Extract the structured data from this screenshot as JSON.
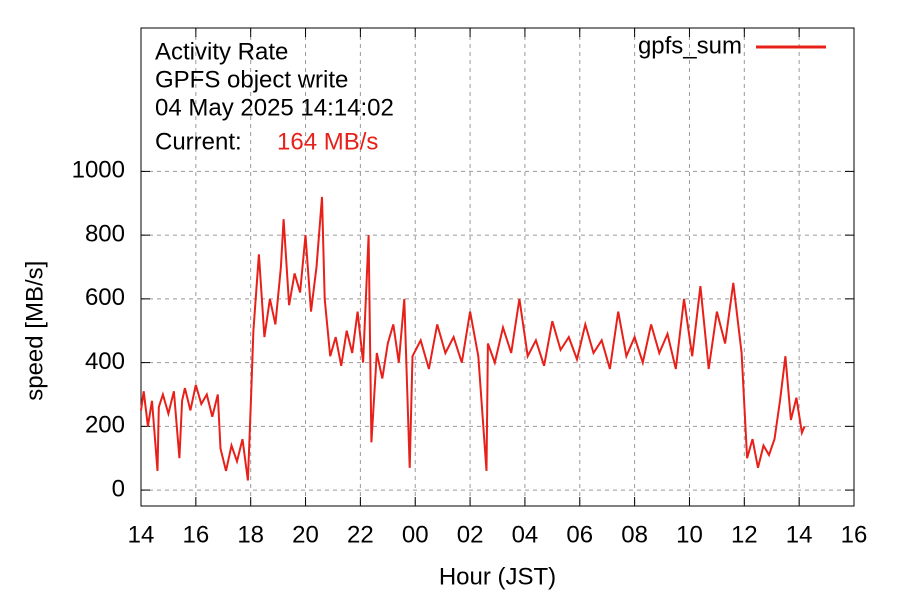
{
  "chart_data": {
    "type": "line",
    "title": "Activity Rate",
    "subtitle": "GPFS object write",
    "timestamp": "04 May 2025 14:14:02",
    "current_label": "Current:",
    "current_value": "164 MB/s",
    "xlabel": "Hour (JST)",
    "ylabel": "speed [MB/s]",
    "x": [
      14.0,
      14.1,
      14.25,
      14.4,
      14.6,
      14.65,
      14.8,
      15.0,
      15.2,
      15.4,
      15.5,
      15.6,
      15.8,
      16.0,
      16.2,
      16.4,
      16.6,
      16.8,
      16.9,
      17.1,
      17.3,
      17.5,
      17.7,
      17.9,
      18.0,
      18.1,
      18.3,
      18.5,
      18.7,
      18.9,
      19.1,
      19.2,
      19.4,
      19.6,
      19.8,
      20.0,
      20.2,
      20.4,
      20.6,
      20.7,
      20.9,
      21.1,
      21.3,
      21.5,
      21.7,
      21.9,
      22.1,
      22.3,
      22.4,
      22.6,
      22.8,
      23.0,
      23.2,
      23.4,
      23.6,
      23.8,
      23.9,
      24.2,
      24.5,
      24.8,
      25.1,
      25.4,
      25.7,
      26.0,
      26.3,
      26.6,
      26.65,
      26.9,
      27.2,
      27.5,
      27.8,
      28.1,
      28.4,
      28.7,
      29.0,
      29.3,
      29.6,
      29.9,
      30.2,
      30.5,
      30.8,
      31.1,
      31.4,
      31.7,
      32.0,
      32.3,
      32.6,
      32.9,
      33.2,
      33.5,
      33.8,
      34.1,
      34.4,
      34.7,
      35.0,
      35.3,
      35.6,
      35.9,
      36.1,
      36.3,
      36.5,
      36.7,
      36.9,
      37.1,
      37.3,
      37.5,
      37.7,
      37.9,
      38.1,
      38.2
    ],
    "series": [
      {
        "name": "gpfs_sum",
        "color": "#e8201a",
        "values": [
          250,
          310,
          200,
          280,
          60,
          260,
          300,
          240,
          310,
          100,
          280,
          320,
          250,
          330,
          270,
          300,
          230,
          300,
          130,
          60,
          140,
          90,
          160,
          30,
          260,
          500,
          740,
          480,
          600,
          520,
          700,
          850,
          580,
          680,
          620,
          800,
          560,
          700,
          920,
          600,
          420,
          480,
          390,
          500,
          430,
          560,
          400,
          800,
          150,
          430,
          350,
          460,
          520,
          400,
          600,
          70,
          420,
          470,
          380,
          520,
          430,
          480,
          400,
          560,
          420,
          60,
          460,
          400,
          510,
          430,
          600,
          420,
          470,
          390,
          530,
          440,
          480,
          410,
          520,
          430,
          470,
          380,
          560,
          420,
          480,
          400,
          520,
          430,
          490,
          380,
          600,
          420,
          640,
          380,
          560,
          460,
          650,
          430,
          100,
          160,
          70,
          140,
          110,
          160,
          280,
          420,
          220,
          290,
          180,
          200
        ]
      }
    ],
    "xlim": [
      14,
      40
    ],
    "xticks": [
      14,
      16,
      18,
      20,
      22,
      {
        "value": 24,
        "label": "00"
      },
      {
        "value": 26,
        "label": "02"
      },
      {
        "value": 28,
        "label": "04"
      },
      {
        "value": 30,
        "label": "06"
      },
      {
        "value": 32,
        "label": "08"
      },
      {
        "value": 34,
        "label": "10"
      },
      {
        "value": 36,
        "label": "12"
      },
      {
        "value": 38,
        "label": "14"
      },
      {
        "value": 40,
        "label": "16"
      }
    ],
    "ylim": [
      -50,
      1450
    ],
    "yticks": [
      0,
      200,
      400,
      600,
      800,
      1000
    ],
    "grid": true,
    "legend": "top-right"
  }
}
